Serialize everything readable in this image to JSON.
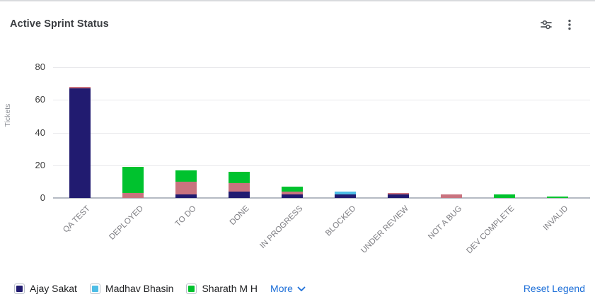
{
  "header": {
    "title": "Active Sprint Status"
  },
  "chart_data": {
    "type": "bar",
    "stacked": true,
    "title": "Active Sprint Status",
    "xlabel": "",
    "ylabel": "Tickets",
    "ylim": [
      0,
      80
    ],
    "yticks": [
      0,
      20,
      40,
      60,
      80
    ],
    "grid": true,
    "legend_position": "bottom",
    "categories": [
      "QA TEST",
      "DEPLOYED",
      "TO DO",
      "DONE",
      "IN PROGRESS",
      "BLOCKED",
      "UNDER REVIEW",
      "NOT A BUG",
      "DEV COMPLETE",
      "INVALID"
    ],
    "series": [
      {
        "name": "Ajay Sakat",
        "color": "#211b70",
        "values": [
          67,
          0,
          2,
          4,
          2,
          2,
          2,
          0,
          0,
          0
        ]
      },
      {
        "name": "More (hidden series, pink)",
        "color": "#c9737f",
        "values": [
          1,
          3,
          8,
          5,
          2,
          0,
          1,
          2,
          0,
          0
        ]
      },
      {
        "name": "Madhav Bhasin",
        "color": "#4dbde6",
        "values": [
          0,
          0,
          0,
          0,
          0,
          2,
          0,
          0,
          0,
          0
        ]
      },
      {
        "name": "Sharath M H",
        "color": "#00c22e",
        "values": [
          0,
          16,
          7,
          7,
          3,
          0,
          0,
          0,
          2,
          1
        ]
      }
    ],
    "totals": [
      68,
      19,
      17,
      16,
      7,
      4,
      3,
      2,
      2,
      1
    ]
  },
  "legend": {
    "items": [
      {
        "label": "Ajay Sakat",
        "color": "#211b70"
      },
      {
        "label": "Madhav Bhasin",
        "color": "#4dbde6"
      },
      {
        "label": "Sharath M H",
        "color": "#00c22e"
      }
    ],
    "more_label": "More",
    "reset_label": "Reset Legend"
  },
  "colors": {
    "link_blue": "#1d6fd8",
    "grid_line": "#e9e9ec",
    "axis_line": "#b5bac3",
    "icon_gray": "#53575c"
  }
}
